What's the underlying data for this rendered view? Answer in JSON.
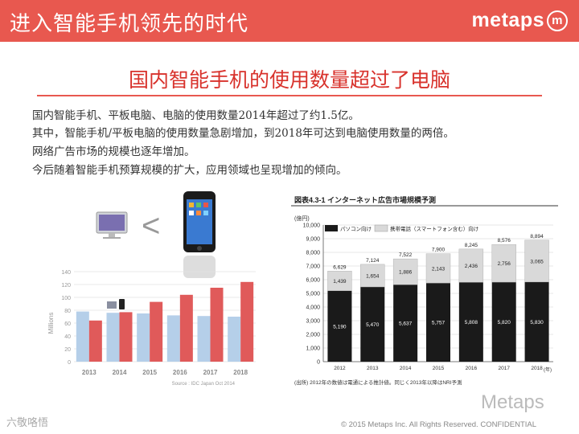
{
  "header": {
    "title": "进入智能手机领先的时代",
    "logo": "metaps",
    "logo_mark": "m"
  },
  "main_title": "国内智能手机的使用数量超过了电脑",
  "body_lines": [
    "国内智能手机、平板电脑、电脑的使用数量2014年超过了约1.5亿。",
    "其中，智能手机/平板电脑的使用数量急剧增加，到2018年可达到电脑使用数量的两倍。",
    "网络广告市场的规模也逐年增加。",
    "今后随着智能手机预算规模的扩大，应用领域也呈现增加的倾向。"
  ],
  "comparison_symbol": "<",
  "footer": "© 2015 Metaps Inc. All Rights Reserved. CONFIDENTIAL",
  "watermark_left": "六敬咯悟",
  "watermark_right": "Metaps",
  "colors": {
    "header": "#e8584f",
    "title_red": "#d8322c",
    "pc_bar": "#b5cfe9",
    "phone_bar": "#e05a5a",
    "pc_black": "#1a1a1a",
    "phone_grey": "#d9d9d9"
  },
  "chart_data": [
    {
      "type": "bar",
      "categories": [
        "2013",
        "2014",
        "2015",
        "2016",
        "2017",
        "2018"
      ],
      "series": [
        {
          "values": [
            78,
            76,
            75,
            72,
            71,
            70
          ]
        },
        {
          "values": [
            64,
            77,
            93,
            104,
            115,
            124
          ]
        }
      ],
      "ylabel": "Millions",
      "ylim": [
        0,
        140
      ],
      "yticks": [
        "0",
        "20",
        "40",
        "60",
        "80",
        "100",
        "120",
        "140"
      ],
      "source": "Source : IDC Japan Oct 2014"
    },
    {
      "type": "bar",
      "stacked": true,
      "title": "図表4.3-1 インターネット広告市場規模予測",
      "unit": "(億円)",
      "categories": [
        "2012",
        "2013",
        "2014",
        "2015",
        "2016",
        "2017",
        "2018"
      ],
      "x_unit": "(年)",
      "series": [
        {
          "name": "パソコン向け",
          "values": [
            5190,
            5470,
            5637,
            5757,
            5808,
            5820,
            5830
          ]
        },
        {
          "name": "携帯電話（スマートフォン含む）向け",
          "values": [
            1439,
            1654,
            1886,
            2143,
            2436,
            2756,
            3065
          ]
        }
      ],
      "totals": [
        6629,
        7124,
        7522,
        7900,
        8245,
        8576,
        8894
      ],
      "ylim": [
        0,
        10000
      ],
      "yticks": [
        "0",
        "1,000",
        "2,000",
        "3,000",
        "4,000",
        "5,000",
        "6,000",
        "7,000",
        "8,000",
        "9,000",
        "10,000"
      ],
      "note": "(出所) 2012年の数値は電通による推計値。同じく2013年以降はNRI予測"
    }
  ]
}
